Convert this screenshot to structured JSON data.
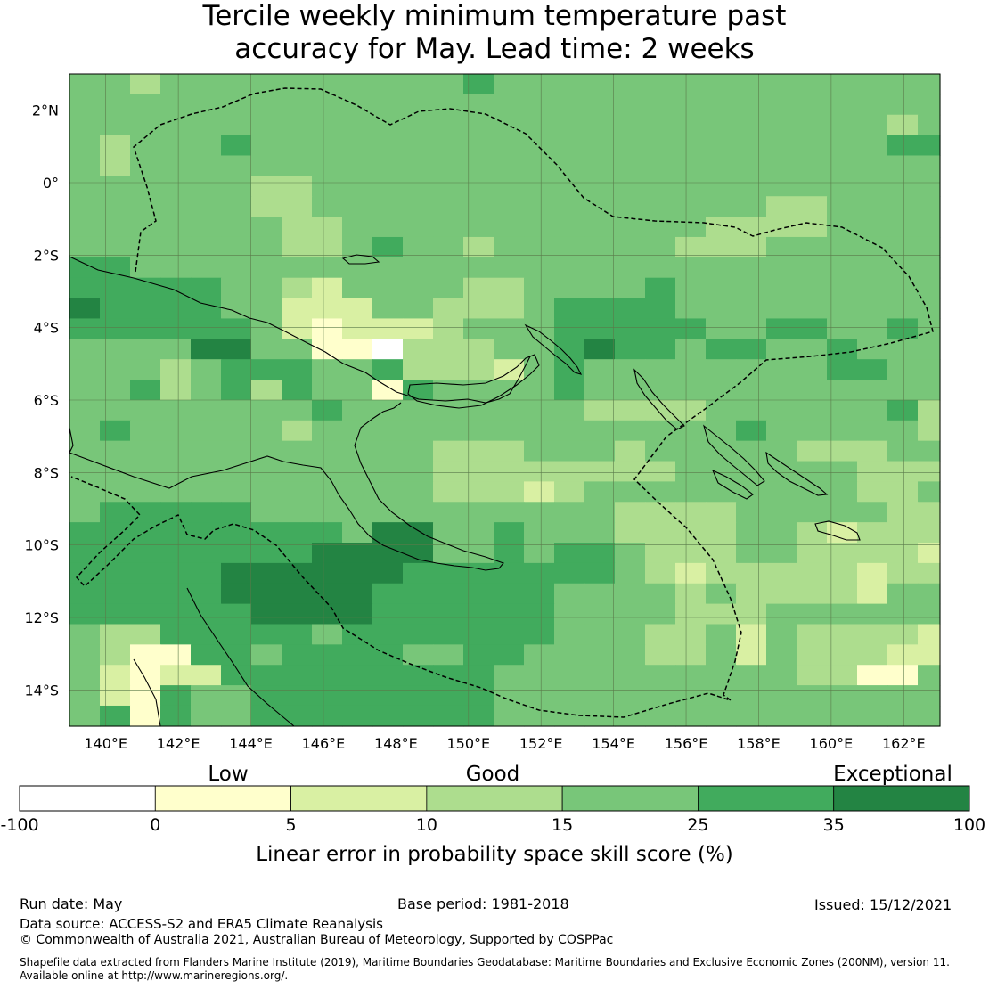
{
  "title": {
    "line1": "Tercile weekly minimum temperature past",
    "line2": "accuracy for May. Lead time: 2 weeks"
  },
  "map": {
    "lon_range": [
      139,
      163
    ],
    "lat_range": [
      -15,
      3
    ],
    "lon_ticks": [
      "140°E",
      "142°E",
      "144°E",
      "146°E",
      "148°E",
      "150°E",
      "152°E",
      "154°E",
      "156°E",
      "158°E",
      "160°E",
      "162°E"
    ],
    "lat_ticks": [
      "2°N",
      "0°",
      "2°S",
      "4°S",
      "6°S",
      "8°S",
      "10°S",
      "12°S",
      "14°S"
    ],
    "grid_resolution_deg": 0.83,
    "gridlines": true,
    "boundary": "EEZ (dashed)",
    "base_class": 4
  },
  "colorbar": {
    "category_labels": [
      "Low",
      "Good",
      "Exceptional"
    ],
    "tick_labels": [
      "-100",
      "0",
      "5",
      "10",
      "15",
      "25",
      "35",
      "100"
    ],
    "colors": [
      "#ffffff",
      "#ffffcc",
      "#d9f0a3",
      "#addd8e",
      "#78c679",
      "#41ab5d",
      "#238443"
    ],
    "title": "Linear error in probability space skill score (%)"
  },
  "footer": {
    "run_date": "Run date: May",
    "base_period": "Base period: 1981-2018",
    "issued": "Issued: 15/12/2021",
    "data_source": "Data source: ACCESS-S2 and ERA5 Climate Reanalysis",
    "copyright": "© Commonwealth of Australia 2021, Australian Bureau of Meteorology, Supported by COSPPac",
    "shapefile_line1": "Shapefile data extracted from Flanders Marine Institute (2019), Maritime Boundaries Geodatabase: Maritime Boundaries and Exclusive Economic Zones (200NM), version 11.",
    "shapefile_line2": "Available online at http://www.marineregions.org/."
  }
}
